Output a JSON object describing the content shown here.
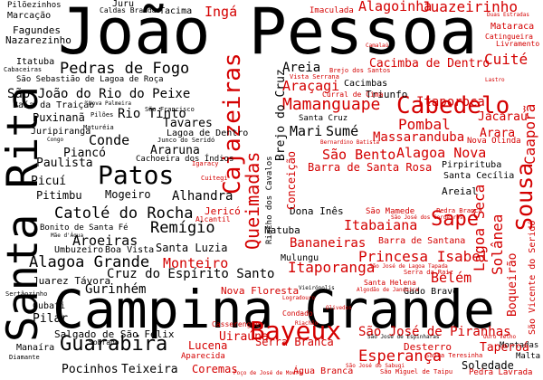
{
  "palette": {
    "black": "#000000",
    "red": "#d40000",
    "background": "#ffffff"
  },
  "words": {
    "joao_pessoa": "João Pessoa",
    "campina_grande": "Campina Grande",
    "santa_rita": "Santa Rita",
    "patos": "Patos",
    "bayeux": "Bayeux",
    "cajazeiras": "Cajazeiras",
    "cabedelo": "Cabedelo",
    "guarabira": "Guarabira",
    "sousa": "Sousa",
    "sape": "Sapé",
    "queimadas": "Queimadas",
    "mamanguape": "Mamanguape",
    "pedras_de_fogo": "Pedras de Fogo",
    "sao_joao_do_rio_do_peixe": "São João do Rio do Peixe",
    "catole_do_rocha": "Catolé do Rocha",
    "alagoa_grande": "Alagoa Grande",
    "cruz_do_espirito_santo": "Cruz do Espírito Santo",
    "monteiro": "Monteiro",
    "esperanca": "Esperança",
    "sao_jose_de_piranhas": "São José de Piranhas",
    "princesa_isabel": "Princesa Isabel",
    "itaporanga": "Itaporanga",
    "pombal": "Pombal",
    "itaporoca": "Itaporoca",
    "alhandra": "Alhandra",
    "lagoa_seca": "Lagoa Seca",
    "solanea": "Solânea",
    "boqueirao": "Boqueirão",
    "remigio": "Remígio",
    "conde": "Conde",
    "arara": "Arara",
    "cuite": "Cuité",
    "ingá": "Ingá",
    "alagoinha": "Alagoinha",
    "juazeirinho": "Juazeirinho",
    "aroeiras": "Aroeiras",
    "guarabira_small": "Gurinhém",
    "pilar": "Pilar",
    "rio_tinto": "Rio Tinto",
    "tavares": "Tavares",
    "areia": "Areia",
    "araçagi": "Araçagi",
    "cacimba_de_dentro": "Cacimba de Dentro",
    "sao_bento": "São Bento",
    "alagoa_nova": "Alagoa Nova",
    "barra_de_santa_rosa": "Barra de Santa Rosa",
    "mari": "Mari",
    "sume": "Sumé",
    "massaranduba": "Massaranduba",
    "jacarau": "Jacaraú",
    "caapora": "Caaporã",
    "bananeiras": "Bananeiras",
    "itabaiana": "Itabaiana",
    "belem": "Belém",
    "uirauna": "Uiraúna",
    "lucena": "Lucena",
    "serra_branca": "Serra Branca",
    "teixeira": "Teixeira",
    "pocinhos": "Pocinhos",
    "coremas": "Coremas",
    "soledade": "Soledade",
    "tapero": "Taperoá",
    "salgado_de_sao_felix": "Salgado de São Félix",
    "cubati": "Cubati",
    "mogeiro": "Mogeiro",
    "pitimbu": "Pitimbu",
    "picui": "Picuí",
    "paulista": "Paulista",
    "pianco": "Piancó",
    "puxinana": "Puxinanã",
    "ararua": "Araruna",
    "santa_luzia": "Santa Luzia",
    "juarez_tavora": "Juarez Távora",
    "conceicao": "Conceição",
    "brejo_do_cruz": "Brejo do Cruz",
    "fagundes": "Fagundes",
    "nazarezinho": "Nazarezinho",
    "marcacao": "Marcação",
    "pilozinhos": "Pilõezinhos",
    "juru": "Juru",
    "tacima": "Tacima",
    "caldas_brandao": "Caldas Brandão",
    "imaculada": "Imaculada",
    "matarca": "Mataraca",
    "catingueira": "Catingueira",
    "itatuba": "Itatuba",
    "cabaceiras": "Cabaceiras",
    "sao_sebastiao_de_lagoa_de_roca": "São Sebastião de Lagoa de Roça",
    "baia_da_traicao": "Baía da Traição",
    "jurupiranga": "Juripiranga",
    "natuba": "Natuba",
    "dona_ines": "Dona Inês",
    "sao_mamede": "São Mamede",
    "mulungu": "Mulungu",
    "nova_floresta": "Nova Floresta",
    "gado_bravo": "Gado Bravo",
    "areial": "Areial",
    "pirpirituba": "Pirpirituba",
    "nova_olinda": "Nova Olinda",
    "santa_cecilia": "Santa Cecília",
    "sao_vicente_do_serido": "São Vicente do Seridó",
    "montadas": "Montadas",
    "pedra_lavrada": "Pedra Lavrada",
    "malta": "Malta",
    "agua_branca": "Água Branca",
    "aparecida": "Aparecida",
    "desterro": "Desterro",
    "mae_dagua": "Mãe d'Água",
    "sobrado": "Sobrado",
    "manaira": "Manaíra",
    "diamante": "Diamante",
    "sertaozinho": "Sertãozinho",
    "bonito_de_santa_fe": "Bonito de Santa Fé",
    "umbuzeiro": "Umbuzeiro",
    "boa_vista": "Boa Vista",
    "jerico": "Jericó",
    "alcantil": "Alcantil",
    "triunfo": "Triunfo",
    "cacimbas": "Cacimbas",
    "vista_serrana": "Vista Serrana",
    "curral_de_cima": "Curral de Cima",
    "santa_cruz": "Santa Cruz",
    "casserengue": "Casserengue",
    "lagoa_de_dentro": "Lagoa de Dentro",
    "cachoeira_dos_indios": "Cachoeira dos Índios",
    "riacho_dos_cavalos": "Riacho dos Cavalos",
    "serra_da_raiz": "Serra da Raiz",
    "livramento": "Livramento",
    "sao_jose_de_espinharas": "São José de Espinharas",
    "sao_jose_dos_cordeiros": "São José dos Cordeiros",
    "sao_miguel_de_taipu": "São Miguel de Taipu",
    "pedra_branca": "Pedra Branca",
    "barra_de_santana": "Barra de Santana",
    "sao_jose_de_lagoa_tapada": "São José de Lagoa Tapada",
    "olivedos": "Olivedos",
    "condado": "Condado",
    "mature": "Maturéia",
    "congo": "Congo",
    "igaracy": "Igaracy",
    "cuitegi": "Cuitegi",
    "junco_do_serido": "Junco do Seridó",
    "nova_palmeira": "Nova Palmeira",
    "sao_francisco": "São Francisco",
    "santa_helena": "Santa Helena",
    "logradouro": "Logradouro",
    "riachao": "Riachão",
    "duas_estradas": "Duas Estradas",
    "camalau": "Camalaú",
    "brejo_dos_santos": "Brejo dos Santos",
    "pilões": "Pilões",
    "vieiropolis": "Vieirópolis",
    "lastro": "Lastro",
    "santa_teresinha": "Santa Teresinha",
    "ouro_velho": "Ouro Velho",
    "poco_de_jose_de_moura": "Poço de José de Moura",
    "sao_jose_do_sabugi": "São José do Sabugi",
    "algodao_de_jandaira": "Algodão de Jandaíra",
    "bernardino_batista": "Bernardino Batista"
  }
}
